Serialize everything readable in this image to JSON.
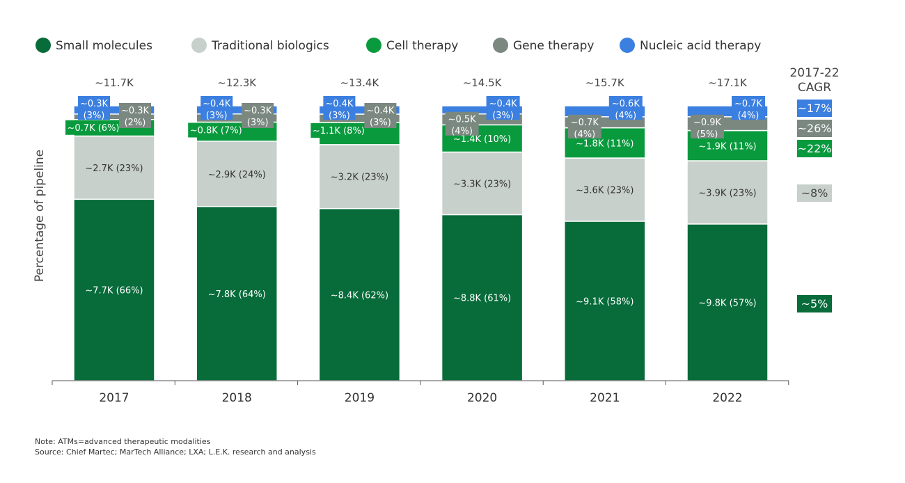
{
  "chart_data": {
    "type": "bar",
    "stacked": true,
    "normalized": true,
    "ylabel": "Percentage of pipeline",
    "categories": [
      "2017",
      "2018",
      "2019",
      "2020",
      "2021",
      "2022"
    ],
    "totals": [
      "~11.7K",
      "~12.3K",
      "~13.4K",
      "~14.5K",
      "~15.7K",
      "~17.1K"
    ],
    "series": [
      {
        "name": "Small molecules",
        "color": "#076b3a",
        "percent": [
          66,
          64,
          62,
          61,
          58,
          57
        ],
        "labels": [
          "~7.7K (66%)",
          "~7.8K (64%)",
          "~8.4K (62%)",
          "~8.8K (61%)",
          "~9.1K (58%)",
          "~9.8K (57%)"
        ],
        "cagr": "~5%"
      },
      {
        "name": "Traditional biologics",
        "color": "#c8d0cc",
        "percent": [
          23,
          24,
          23,
          23,
          23,
          23
        ],
        "labels": [
          "~2.7K (23%)",
          "~2.9K (24%)",
          "~3.2K (23%)",
          "~3.3K (23%)",
          "~3.6K (23%)",
          "~3.9K (23%)"
        ],
        "cagr": "~8%"
      },
      {
        "name": "Cell therapy",
        "color": "#0a9a3e",
        "percent": [
          6,
          7,
          8,
          10,
          11,
          11
        ],
        "labels": [
          "~0.7K (6%)",
          "~0.8K (7%)",
          "~1.1K (8%)",
          "~1.4K (10%)",
          "~1.8K (11%)",
          "~1.9K (11%)"
        ],
        "cagr": "~22%"
      },
      {
        "name": "Gene therapy",
        "color": "#7a8880",
        "percent": [
          2,
          3,
          3,
          4,
          4,
          5
        ],
        "values": [
          "~0.3K",
          "~0.3K",
          "~0.4K",
          "~0.5K",
          "~0.7K",
          "~0.9K"
        ],
        "shares": [
          "(2%)",
          "(3%)",
          "(3%)",
          "(4%)",
          "(4%)",
          "(5%)"
        ],
        "cagr": "~26%"
      },
      {
        "name": "Nucleic acid therapy",
        "color": "#3b7fe0",
        "percent": [
          3,
          3,
          3,
          3,
          4,
          4
        ],
        "values": [
          "~0.3K",
          "~0.4K",
          "~0.4K",
          "~0.4K",
          "~0.6K",
          "~0.7K"
        ],
        "shares": [
          "(3%)",
          "(3%)",
          "(3%)",
          "(3%)",
          "(4%)",
          "(4%)"
        ],
        "cagr": "~17%"
      }
    ],
    "cagr_title": [
      "2017-22",
      "CAGR"
    ],
    "legend": "top",
    "grid": false
  },
  "notes": {
    "note": "Note: ATMs=advanced therapeutic modalities",
    "source": "Source: Chief Martec; MarTech Alliance; LXA; L.E.K. research and analysis"
  }
}
